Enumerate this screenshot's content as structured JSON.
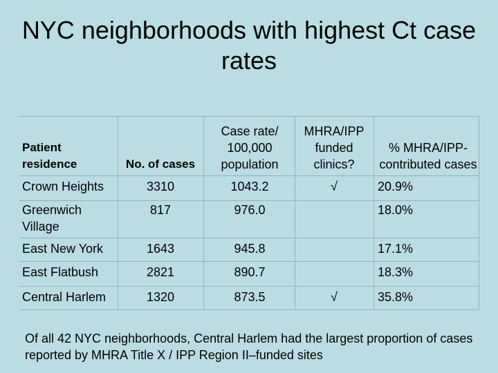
{
  "title": "NYC neighborhoods with highest Ct case rates",
  "table": {
    "headers": [
      "Patient residence",
      "No. of cases",
      "Case rate/ 100,000 population",
      "MHRA/IPP funded clinics?",
      "% MHRA/IPP-contributed cases"
    ],
    "rows": [
      [
        "Crown Heights",
        "3310",
        "1043.2",
        "√",
        "20.9%"
      ],
      [
        "Greenwich Village",
        "817",
        "976.0",
        "",
        "18.0%"
      ],
      [
        "East New York",
        "1643",
        "945.8",
        "",
        "17.1%"
      ],
      [
        "East Flatbush",
        "2821",
        "890.7",
        "",
        "18.3%"
      ],
      [
        "Central Harlem",
        "1320",
        "873.5",
        "√",
        "35.8%"
      ]
    ]
  },
  "footer": "Of all 42 NYC neighborhoods, Central Harlem had the largest proportion of cases reported by MHRA Title X / IPP Region II–funded sites"
}
